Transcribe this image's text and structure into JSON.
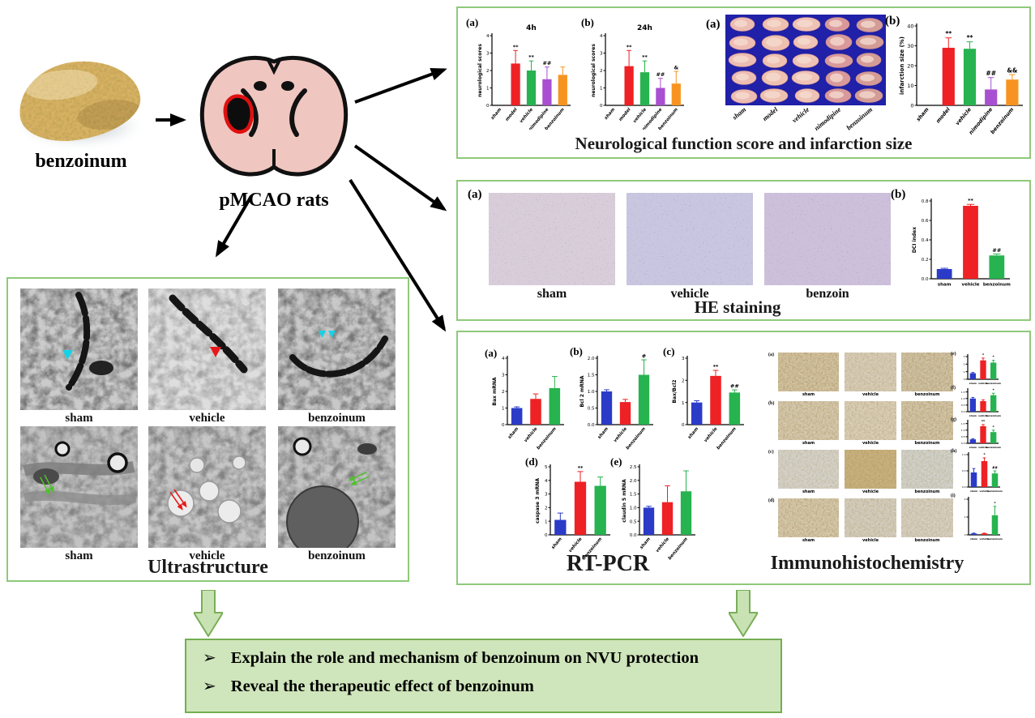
{
  "colors": {
    "panel_border": "#8fc97a",
    "box_fill": "#cfe5bb",
    "box_border": "#74ad52",
    "arrow_green_fill": "#c9e2b4",
    "arrow_green_stroke": "#79ae58",
    "bar_blue": "#2b3bc8",
    "bar_red": "#ee2125",
    "bar_green": "#27b34f",
    "bar_purple": "#a94fd1",
    "bar_orange": "#f79421",
    "brain_pink": "#f0c6c0",
    "infarct_outline": "#e01010",
    "slices_bg": "#2020a8"
  },
  "intro": {
    "benzoinum_label": "benzoinum",
    "pmcao_label": "pMCAO rats"
  },
  "panels": {
    "neuro": {
      "letter_a": "(a)",
      "letter_b": "(b)",
      "slices_letter": "(a)",
      "infarct_letter": "(b)",
      "title": "Neurological function score and infarction size",
      "slice_groups": [
        "sham",
        "model",
        "vehicle",
        "nimodipine",
        "benzoinum"
      ]
    },
    "he": {
      "letter_a": "(a)",
      "letter_b": "(b)",
      "image_labels": [
        "sham",
        "vehicle",
        "benzoin"
      ],
      "title": "HE staining"
    },
    "rtpcr": {
      "letters": [
        "(a)",
        "(b)",
        "(c)",
        "(d)",
        "(e)"
      ],
      "title": "RT-PCR"
    },
    "ihc": {
      "title": "Immunohistochemistry",
      "row_letters": [
        "(a)",
        "(b)",
        "(c)",
        "(d)"
      ],
      "chart_letters": [
        "(e)",
        "(f)",
        "(g)",
        "(h)",
        "(i)"
      ],
      "image_labels": [
        "sham",
        "vehicle",
        "benzoinum"
      ]
    },
    "ultra": {
      "title": "Ultrastructure",
      "image_labels": [
        "sham",
        "vehicle",
        "benzoinum"
      ]
    }
  },
  "conclusion": {
    "bullet": "➢",
    "items": [
      "Explain the role and mechanism of benzoinum on NVU protection",
      "Reveal the therapeutic effect of benzoinum"
    ]
  },
  "chart_data": {
    "neuro4h": {
      "type": "bar",
      "title": "4h",
      "ylabel": "neurological scores",
      "ylim": [
        0,
        4
      ],
      "yticks": [
        "0",
        "1",
        "2",
        "3",
        "4"
      ],
      "categories": [
        "sham",
        "model",
        "vehicle",
        "nimodipine",
        "benzoinum"
      ],
      "values": [
        0,
        2.4,
        2.0,
        1.5,
        1.75
      ],
      "errors": [
        0,
        0.75,
        0.55,
        0.7,
        0.45
      ],
      "annotations": [
        "",
        "**",
        "**",
        "##",
        ""
      ],
      "colors": [
        "#2b3bc8",
        "#ee2125",
        "#27b34f",
        "#a94fd1",
        "#f79421"
      ]
    },
    "neuro24h": {
      "type": "bar",
      "title": "24h",
      "ylabel": "neurological scores",
      "ylim": [
        0,
        4
      ],
      "yticks": [
        "0",
        "1",
        "2",
        "3",
        "4"
      ],
      "categories": [
        "sham",
        "model",
        "vehicle",
        "nimodipine",
        "benzoinum"
      ],
      "values": [
        0,
        2.25,
        1.9,
        1.0,
        1.25
      ],
      "errors": [
        0,
        0.9,
        0.65,
        0.55,
        0.7
      ],
      "annotations": [
        "",
        "**",
        "**",
        "##",
        "&"
      ],
      "colors": [
        "#2b3bc8",
        "#ee2125",
        "#27b34f",
        "#a94fd1",
        "#f79421"
      ]
    },
    "infarct": {
      "type": "bar",
      "title": "",
      "ylabel": "infarction size (%)",
      "ylim": [
        0,
        40
      ],
      "yticks": [
        "0",
        "10",
        "20",
        "30",
        "40"
      ],
      "categories": [
        "sham",
        "model",
        "vehicle",
        "nimodipine",
        "benzoinum"
      ],
      "values": [
        0,
        29,
        28.5,
        8,
        13
      ],
      "errors": [
        0,
        5,
        3.5,
        6,
        2.5
      ],
      "annotations": [
        "",
        "**",
        "**",
        "##",
        "&&"
      ],
      "colors": [
        "#2b3bc8",
        "#ee2125",
        "#27b34f",
        "#a94fd1",
        "#f79421"
      ]
    },
    "dci": {
      "type": "bar",
      "title": "",
      "ylabel": "DCI index",
      "ylim": [
        0,
        0.8
      ],
      "yticks": [
        "0.0",
        "0.2",
        "0.4",
        "0.6",
        "0.8"
      ],
      "categories": [
        "sham",
        "vehicle",
        "benzoinum"
      ],
      "values": [
        0.1,
        0.75,
        0.24
      ],
      "errors": [
        0.008,
        0.015,
        0.015
      ],
      "annotations": [
        "",
        "**",
        "##"
      ],
      "colors": [
        "#2b3bc8",
        "#ee2125",
        "#27b34f"
      ]
    },
    "bax": {
      "type": "bar",
      "title": "",
      "ylabel": "Bax mRNA",
      "ylim": [
        0,
        4
      ],
      "yticks": [
        "0",
        "1",
        "2",
        "3",
        "4"
      ],
      "categories": [
        "sham",
        "vehicle",
        "benzoinum"
      ],
      "values": [
        1.0,
        1.55,
        2.2
      ],
      "errors": [
        0.07,
        0.3,
        0.7
      ],
      "annotations": [
        "",
        "",
        ""
      ],
      "colors": [
        "#2b3bc8",
        "#ee2125",
        "#27b34f"
      ]
    },
    "bcl2": {
      "type": "bar",
      "title": "",
      "ylabel": "Bcl 2 mRNA",
      "ylim": [
        0,
        2
      ],
      "yticks": [
        "0.0",
        "0.5",
        "1.0",
        "1.5",
        "2.0"
      ],
      "categories": [
        "sham",
        "vehicle",
        "benzoinum"
      ],
      "values": [
        1.0,
        0.68,
        1.5
      ],
      "errors": [
        0.05,
        0.08,
        0.45
      ],
      "annotations": [
        "",
        "",
        "#"
      ],
      "colors": [
        "#2b3bc8",
        "#ee2125",
        "#27b34f"
      ]
    },
    "baxbcl2": {
      "type": "bar",
      "title": "",
      "ylabel": "Bax/Bcl2",
      "ylim": [
        0,
        3
      ],
      "yticks": [
        "0",
        "1",
        "2",
        "3"
      ],
      "categories": [
        "sham",
        "vehicle",
        "benzoinum"
      ],
      "values": [
        1.0,
        2.2,
        1.45
      ],
      "errors": [
        0.08,
        0.25,
        0.12
      ],
      "annotations": [
        "",
        "**",
        "##"
      ],
      "colors": [
        "#2b3bc8",
        "#ee2125",
        "#27b34f"
      ]
    },
    "casp3": {
      "type": "bar",
      "title": "",
      "ylabel": "caspase 3 mRNA",
      "ylim": [
        0,
        5
      ],
      "yticks": [
        "0",
        "1",
        "2",
        "3",
        "4",
        "5"
      ],
      "categories": [
        "sham",
        "vehicle",
        "benzoinum"
      ],
      "values": [
        1.1,
        3.9,
        3.6
      ],
      "errors": [
        0.5,
        0.75,
        0.65
      ],
      "annotations": [
        "",
        "**",
        ""
      ],
      "colors": [
        "#2b3bc8",
        "#ee2125",
        "#27b34f"
      ]
    },
    "cldn5": {
      "type": "bar",
      "title": "",
      "ylabel": "claudin 5 mRNA",
      "ylim": [
        0,
        2.5
      ],
      "yticks": [
        "0.0",
        "0.5",
        "1.0",
        "1.5",
        "2.0",
        "2.5"
      ],
      "categories": [
        "sham",
        "vehicle",
        "benzoinum"
      ],
      "values": [
        1.0,
        1.2,
        1.6
      ],
      "errors": [
        0.05,
        0.6,
        0.75
      ],
      "annotations": [
        "",
        "",
        ""
      ],
      "colors": [
        "#2b3bc8",
        "#ee2125",
        "#27b34f"
      ]
    },
    "ihc1": {
      "type": "bar",
      "title": "",
      "ylabel": "",
      "ylim": [
        0,
        3
      ],
      "yticks": [
        "0",
        "1",
        "2",
        "3"
      ],
      "categories": [
        "sham",
        "vehicle",
        "benzoinum"
      ],
      "values": [
        0.8,
        2.5,
        2.2
      ],
      "errors": [
        0.1,
        0.3,
        0.3
      ],
      "annotations": [
        "",
        "*",
        "*"
      ],
      "colors": [
        "#2b3bc8",
        "#ee2125",
        "#27b34f"
      ]
    },
    "ihc2": {
      "type": "bar",
      "title": "",
      "ylabel": "",
      "ylim": [
        0,
        1.6
      ],
      "yticks": [
        "0.0",
        "0.5",
        "1.0",
        "1.5"
      ],
      "categories": [
        "sham",
        "vehicle",
        "benzoinum"
      ],
      "values": [
        1.0,
        0.8,
        1.25
      ],
      "errors": [
        0.08,
        0.1,
        0.15
      ],
      "annotations": [
        "",
        "",
        "*"
      ],
      "colors": [
        "#2b3bc8",
        "#ee2125",
        "#27b34f"
      ]
    },
    "ihc3": {
      "type": "bar",
      "title": "",
      "ylabel": "",
      "ylim": [
        0,
        1.6
      ],
      "yticks": [
        "0.0",
        "0.5",
        "1.0",
        "1.5"
      ],
      "categories": [
        "sham",
        "vehicle",
        "benzoinum"
      ],
      "values": [
        0.3,
        1.3,
        0.85
      ],
      "errors": [
        0.05,
        0.12,
        0.15
      ],
      "annotations": [
        "",
        "**",
        "*"
      ],
      "colors": [
        "#2b3bc8",
        "#ee2125",
        "#27b34f"
      ]
    },
    "ihc4": {
      "type": "bar",
      "title": "",
      "ylabel": "",
      "ylim": [
        0,
        1.0
      ],
      "yticks": [
        "0.0",
        "0.5",
        "1.0"
      ],
      "categories": [
        "sham",
        "vehicle",
        "benzoinum"
      ],
      "values": [
        0.45,
        0.8,
        0.42
      ],
      "errors": [
        0.12,
        0.1,
        0.08
      ],
      "annotations": [
        "",
        "*",
        "##"
      ],
      "colors": [
        "#2b3bc8",
        "#ee2125",
        "#27b34f"
      ]
    },
    "ihc5": {
      "type": "bar",
      "title": "",
      "ylabel": "",
      "ylim": [
        0,
        2.0
      ],
      "yticks": [
        "0",
        "1",
        "2"
      ],
      "categories": [
        "sham",
        "vehicle",
        "benzoinum"
      ],
      "values": [
        0.08,
        0.08,
        1.1
      ],
      "errors": [
        0.02,
        0.02,
        0.5
      ],
      "annotations": [
        "",
        "",
        "*"
      ],
      "colors": [
        "#2b3bc8",
        "#ee2125",
        "#27b34f"
      ]
    }
  }
}
